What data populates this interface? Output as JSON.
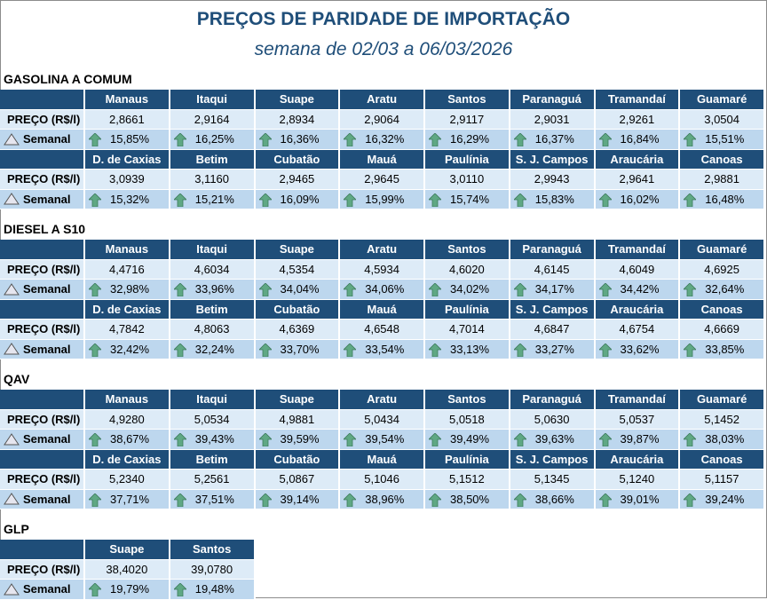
{
  "title": "PREÇOS DE PARIDADE DE IMPORTAÇÃO",
  "subtitle": "semana de 02/03 a 06/03/2026",
  "labels": {
    "price": "PREÇO (R$/l)",
    "weekly": "Semanal"
  },
  "colors": {
    "header": "#1f4e79",
    "price_row": "#ddebf7",
    "weekly_row": "#bdd7ee",
    "arrow": "#5fa884"
  },
  "icons": {
    "weekly": "delta-triangle-icon",
    "change": "arrow-up-icon"
  },
  "sections": [
    {
      "name": "GASOLINA A COMUM",
      "blocks": [
        {
          "locations": [
            "Manaus",
            "Itaqui",
            "Suape",
            "Aratu",
            "Santos",
            "Paranaguá",
            "Tramandaí",
            "Guamaré"
          ],
          "prices": [
            "2,8661",
            "2,9164",
            "2,8934",
            "2,9064",
            "2,9117",
            "2,9031",
            "2,9261",
            "3,0504"
          ],
          "weekly": [
            "15,85%",
            "16,25%",
            "16,36%",
            "16,32%",
            "16,29%",
            "16,37%",
            "16,84%",
            "15,51%"
          ]
        },
        {
          "locations": [
            "D. de Caxias",
            "Betim",
            "Cubatão",
            "Mauá",
            "Paulínia",
            "S. J. Campos",
            "Araucária",
            "Canoas"
          ],
          "prices": [
            "3,0939",
            "3,1160",
            "2,9465",
            "2,9645",
            "3,0110",
            "2,9943",
            "2,9641",
            "2,9881"
          ],
          "weekly": [
            "15,32%",
            "15,21%",
            "16,09%",
            "15,99%",
            "15,74%",
            "15,83%",
            "16,02%",
            "16,48%"
          ]
        }
      ]
    },
    {
      "name": "DIESEL A S10",
      "blocks": [
        {
          "locations": [
            "Manaus",
            "Itaqui",
            "Suape",
            "Aratu",
            "Santos",
            "Paranaguá",
            "Tramandaí",
            "Guamaré"
          ],
          "prices": [
            "4,4716",
            "4,6034",
            "4,5354",
            "4,5934",
            "4,6020",
            "4,6145",
            "4,6049",
            "4,6925"
          ],
          "weekly": [
            "32,98%",
            "33,96%",
            "34,04%",
            "34,06%",
            "34,02%",
            "34,17%",
            "34,42%",
            "32,64%"
          ]
        },
        {
          "locations": [
            "D. de Caxias",
            "Betim",
            "Cubatão",
            "Mauá",
            "Paulínia",
            "S. J. Campos",
            "Araucária",
            "Canoas"
          ],
          "prices": [
            "4,7842",
            "4,8063",
            "4,6369",
            "4,6548",
            "4,7014",
            "4,6847",
            "4,6754",
            "4,6669"
          ],
          "weekly": [
            "32,42%",
            "32,24%",
            "33,70%",
            "33,54%",
            "33,13%",
            "33,27%",
            "33,62%",
            "33,85%"
          ]
        }
      ]
    },
    {
      "name": "QAV",
      "blocks": [
        {
          "locations": [
            "Manaus",
            "Itaqui",
            "Suape",
            "Aratu",
            "Santos",
            "Paranaguá",
            "Tramandaí",
            "Guamaré"
          ],
          "prices": [
            "4,9280",
            "5,0534",
            "4,9881",
            "5,0434",
            "5,0518",
            "5,0630",
            "5,0537",
            "5,1452"
          ],
          "weekly": [
            "38,67%",
            "39,43%",
            "39,59%",
            "39,54%",
            "39,49%",
            "39,63%",
            "39,87%",
            "38,03%"
          ]
        },
        {
          "locations": [
            "D. de Caxias",
            "Betim",
            "Cubatão",
            "Mauá",
            "Paulínia",
            "S. J. Campos",
            "Araucária",
            "Canoas"
          ],
          "prices": [
            "5,2340",
            "5,2561",
            "5,0867",
            "5,1046",
            "5,1512",
            "5,1345",
            "5,1240",
            "5,1157"
          ],
          "weekly": [
            "37,71%",
            "37,51%",
            "39,14%",
            "38,96%",
            "38,50%",
            "38,66%",
            "39,01%",
            "39,24%"
          ]
        }
      ]
    },
    {
      "name": "GLP",
      "blocks": [
        {
          "locations": [
            "Suape",
            "Santos"
          ],
          "prices": [
            "38,4020",
            "39,0780"
          ],
          "weekly": [
            "19,79%",
            "19,48%"
          ]
        }
      ]
    }
  ]
}
